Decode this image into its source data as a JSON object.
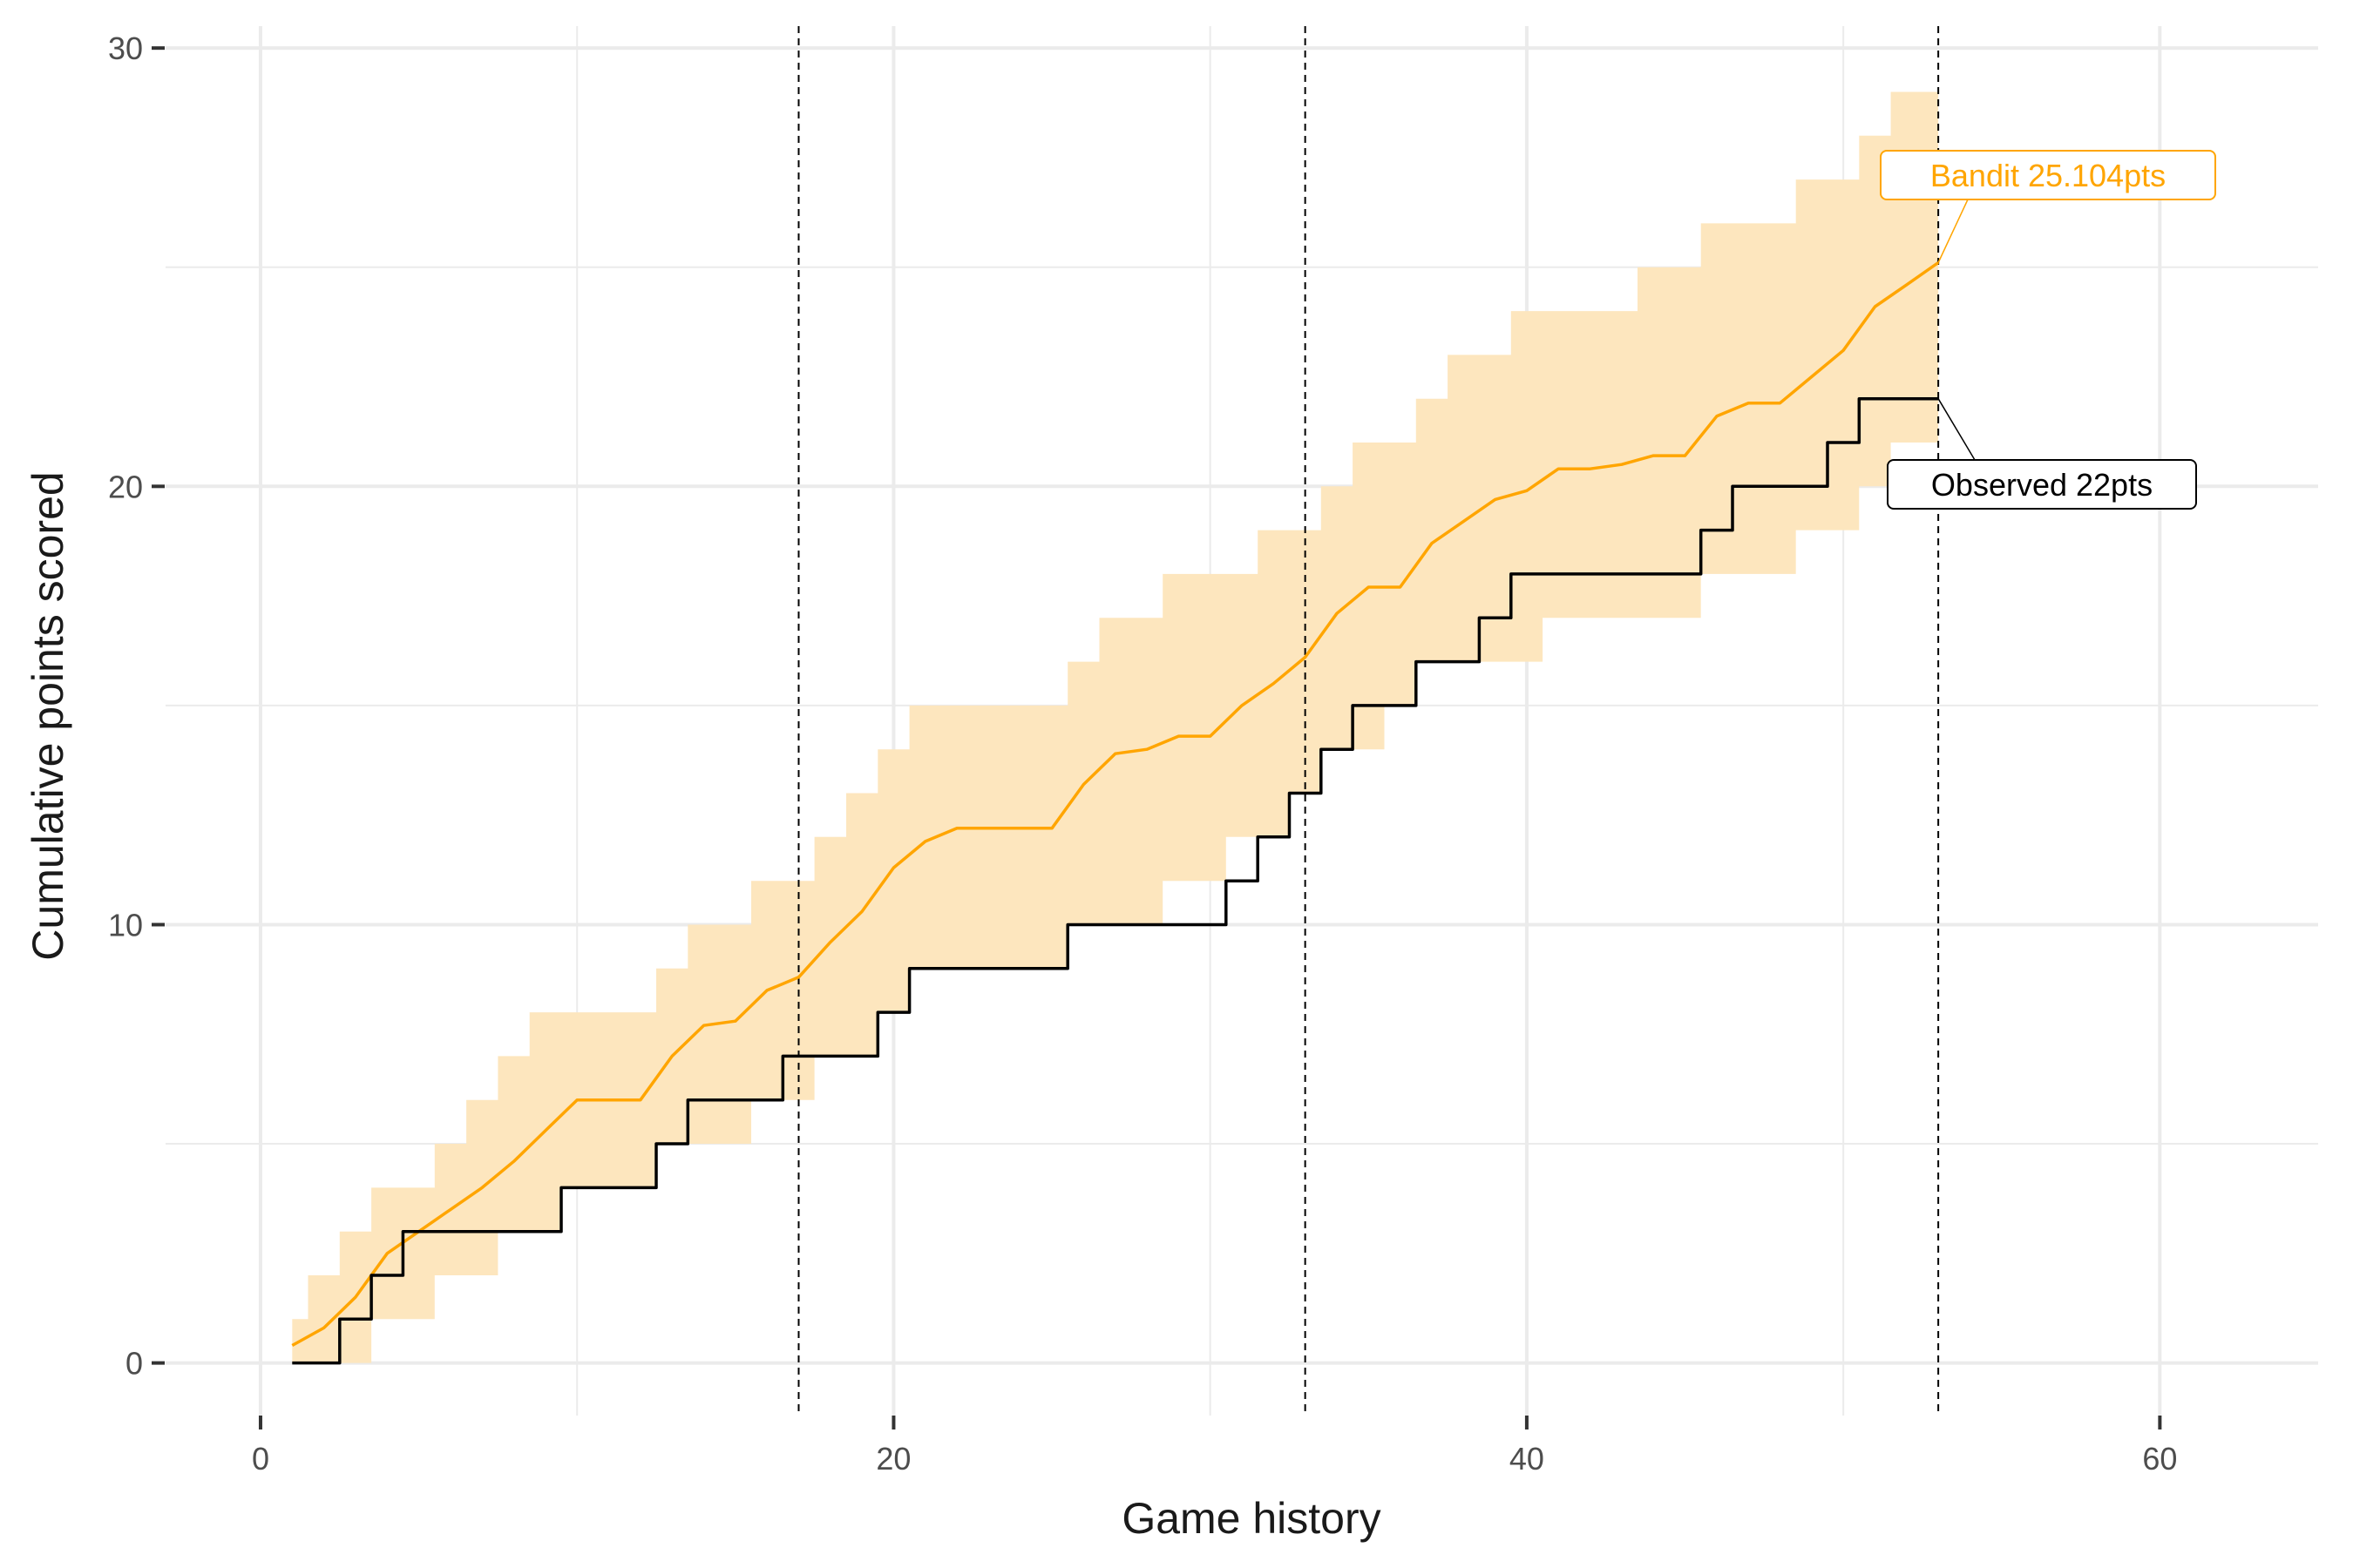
{
  "chart_data": {
    "type": "line",
    "xlabel": "Game history",
    "ylabel": "Cumulative points scored",
    "xlim": [
      -3,
      65
    ],
    "ylim": [
      -1.2,
      30.5
    ],
    "x_ticks": [
      0,
      20,
      40,
      60
    ],
    "x_tick_labels": [
      "0",
      "20",
      "40",
      "60"
    ],
    "y_ticks": [
      0,
      10,
      20,
      30
    ],
    "y_tick_labels": [
      "0",
      "10",
      "20",
      "30"
    ],
    "x_minor": [
      10,
      30,
      50
    ],
    "y_minor": [
      5,
      15,
      25
    ],
    "grid": true,
    "vlines": [
      17,
      33,
      53
    ],
    "colors": {
      "bandit": "#FFA500",
      "band": "#FDE6BE",
      "observed": "#000000",
      "grid": "#EBEBEB"
    },
    "x": [
      1,
      2,
      3,
      4,
      5,
      6,
      7,
      8,
      9,
      10,
      11,
      12,
      13,
      14,
      15,
      16,
      17,
      18,
      19,
      20,
      21,
      22,
      23,
      24,
      25,
      26,
      27,
      28,
      29,
      30,
      31,
      32,
      33,
      34,
      35,
      36,
      37,
      38,
      39,
      40,
      41,
      42,
      43,
      44,
      45,
      46,
      47,
      48,
      49,
      50,
      51,
      52,
      53
    ],
    "series": [
      {
        "name": "Bandit",
        "values": [
          0.4,
          0.8,
          1.5,
          2.5,
          3.0,
          3.5,
          4.0,
          4.6,
          5.3,
          6.0,
          6.0,
          6.0,
          7.0,
          7.7,
          7.8,
          8.5,
          8.8,
          9.6,
          10.3,
          11.3,
          11.9,
          12.2,
          12.2,
          12.2,
          12.2,
          13.2,
          13.9,
          14.0,
          14.3,
          14.3,
          15.0,
          15.5,
          16.1,
          17.1,
          17.7,
          17.7,
          18.7,
          19.2,
          19.7,
          19.9,
          20.4,
          20.4,
          20.5,
          20.7,
          20.7,
          21.6,
          21.9,
          21.9,
          22.5,
          23.1,
          24.1,
          24.6,
          25.104
        ]
      },
      {
        "name": "Observed",
        "values": [
          0,
          0,
          1,
          2,
          3,
          3,
          3,
          3,
          3,
          4,
          4,
          4,
          5,
          6,
          6,
          6,
          7,
          7,
          7,
          8,
          9,
          9,
          9,
          9,
          9,
          10,
          10,
          10,
          10,
          10,
          11,
          12,
          13,
          14,
          15,
          15,
          16,
          16,
          17,
          18,
          18,
          18,
          18,
          18,
          18,
          19,
          20,
          20,
          20,
          21,
          22,
          22,
          22
        ]
      }
    ],
    "band": {
      "lower": [
        0,
        0,
        0,
        1,
        1,
        2,
        2,
        3,
        3,
        4,
        4,
        4,
        5,
        5,
        5,
        6,
        6,
        7,
        7,
        8,
        9,
        9,
        9,
        9,
        9,
        10,
        10,
        10,
        11,
        11,
        12,
        12,
        13,
        14,
        14,
        15,
        16,
        16,
        16,
        16,
        17,
        17,
        17,
        17,
        17,
        18,
        18,
        18,
        19,
        19,
        20,
        21,
        21
      ],
      "upper": [
        1,
        2,
        3,
        4,
        4,
        5,
        6,
        7,
        8,
        8,
        8,
        8,
        9,
        10,
        10,
        11,
        11,
        12,
        13,
        14,
        15,
        15,
        15,
        15,
        15,
        16,
        17,
        17,
        18,
        18,
        18,
        19,
        19,
        20,
        21,
        21,
        22,
        23,
        23,
        24,
        24,
        24,
        24,
        25,
        25,
        26,
        26,
        26,
        27,
        27,
        28,
        29,
        29
      ]
    },
    "annotations": [
      {
        "text": "Bandit 25.104pts",
        "series": "Bandit"
      },
      {
        "text": "Observed 22pts",
        "series": "Observed"
      }
    ]
  }
}
